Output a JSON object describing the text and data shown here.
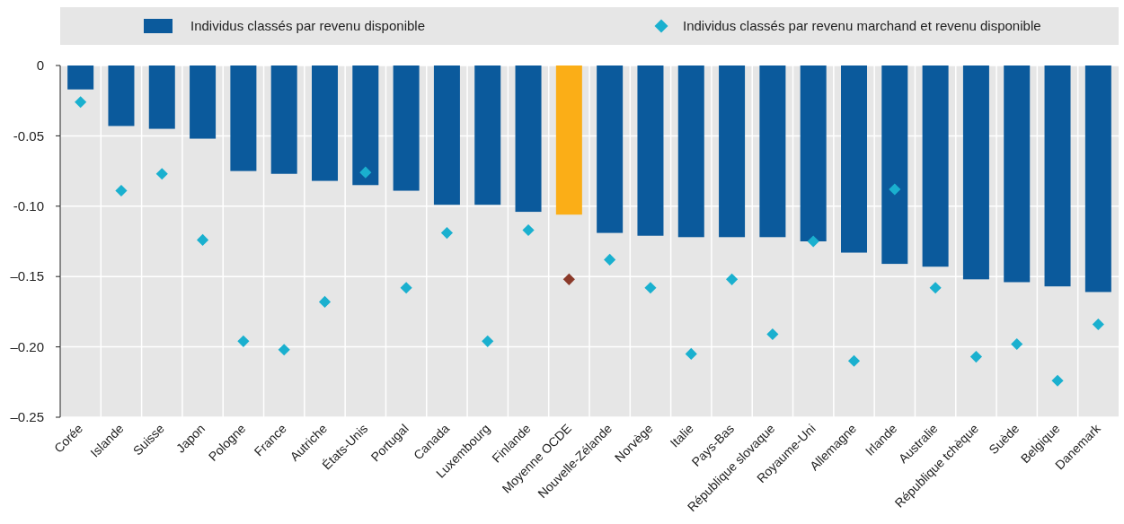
{
  "chart_data": {
    "type": "bar",
    "categories": [
      "Corée",
      "Islande",
      "Suisse",
      "Japon",
      "Pologne",
      "France",
      "Autriche",
      "États-Unis",
      "Portugal",
      "Canada",
      "Luxembourg",
      "Finlande",
      "Moyenne OCDE",
      "Nouvelle-Zélande",
      "Norvège",
      "Italie",
      "Pays-Bas",
      "République slovaque",
      "Royaume-Uni",
      "Allemagne",
      "Irlande",
      "Australie",
      "République tchèque",
      "Suède",
      "Belgique",
      "Danemark"
    ],
    "series": [
      {
        "name": "Individus classés par revenu disponible",
        "color": "#0b5a9c",
        "colors": [
          "#0b5a9c",
          "#0b5a9c",
          "#0b5a9c",
          "#0b5a9c",
          "#0b5a9c",
          "#0b5a9c",
          "#0b5a9c",
          "#0b5a9c",
          "#0b5a9c",
          "#0b5a9c",
          "#0b5a9c",
          "#0b5a9c",
          "#fbae17",
          "#0b5a9c",
          "#0b5a9c",
          "#0b5a9c",
          "#0b5a9c",
          "#0b5a9c",
          "#0b5a9c",
          "#0b5a9c",
          "#0b5a9c",
          "#0b5a9c",
          "#0b5a9c",
          "#0b5a9c",
          "#0b5a9c",
          "#0b5a9c"
        ],
        "values": [
          -0.017,
          -0.043,
          -0.045,
          -0.052,
          -0.075,
          -0.077,
          -0.082,
          -0.085,
          -0.089,
          -0.099,
          -0.099,
          -0.104,
          -0.106,
          -0.119,
          -0.121,
          -0.122,
          -0.122,
          -0.122,
          -0.125,
          -0.133,
          -0.141,
          -0.143,
          -0.152,
          -0.154,
          -0.157,
          -0.161
        ]
      },
      {
        "name": "Individus classés par revenu marchand et revenu disponible",
        "type": "scatter",
        "x": [
          "Corée",
          "Islande",
          "Suisse",
          "Japon",
          "Pologne",
          "France",
          "Autriche",
          "États-Unis",
          "Portugal",
          "Canada",
          "Luxembourg",
          "Finlande",
          "Moyenne OCDE",
          "Nouvelle-Zélande",
          "Norvège",
          "Italie",
          "Pays-Bas",
          "République slovaque",
          "Royaume-Uni",
          "Allemagne",
          "Irlande",
          "Australie",
          "République tchèque",
          "Suède",
          "Belgique",
          "Danemark"
        ],
        "marker": "diamond",
        "color": "#1ab0cf",
        "colors": [
          "#1ab0cf",
          "#1ab0cf",
          "#1ab0cf",
          "#1ab0cf",
          "#1ab0cf",
          "#1ab0cf",
          "#1ab0cf",
          "#1ab0cf",
          "#1ab0cf",
          "#1ab0cf",
          "#1ab0cf",
          "#1ab0cf",
          "#8b3a2a",
          "#1ab0cf",
          "#1ab0cf",
          "#1ab0cf",
          "#1ab0cf",
          "#1ab0cf",
          "#1ab0cf",
          "#1ab0cf",
          "#1ab0cf",
          "#1ab0cf",
          "#1ab0cf",
          "#1ab0cf",
          "#1ab0cf",
          "#1ab0cf"
        ],
        "values": [
          -0.026,
          -0.089,
          -0.077,
          -0.124,
          -0.196,
          -0.202,
          -0.168,
          -0.076,
          -0.158,
          -0.119,
          -0.196,
          -0.117,
          -0.152,
          -0.138,
          -0.158,
          -0.205,
          -0.152,
          -0.191,
          -0.125,
          -0.21,
          -0.088,
          -0.158,
          -0.207,
          -0.198,
          -0.224,
          -0.184
        ]
      }
    ],
    "ylim": [
      -0.25,
      0
    ],
    "yticks": [
      0,
      -0.05,
      {
        "value": -0.1,
        "label": "-0.10"
      },
      {
        "value": -0.15,
        "label": "–0.15"
      },
      {
        "value": -0.2,
        "label": "–0.20"
      },
      {
        "value": -0.25,
        "label": "–0.25"
      }
    ],
    "grid": true,
    "legend": "top"
  }
}
